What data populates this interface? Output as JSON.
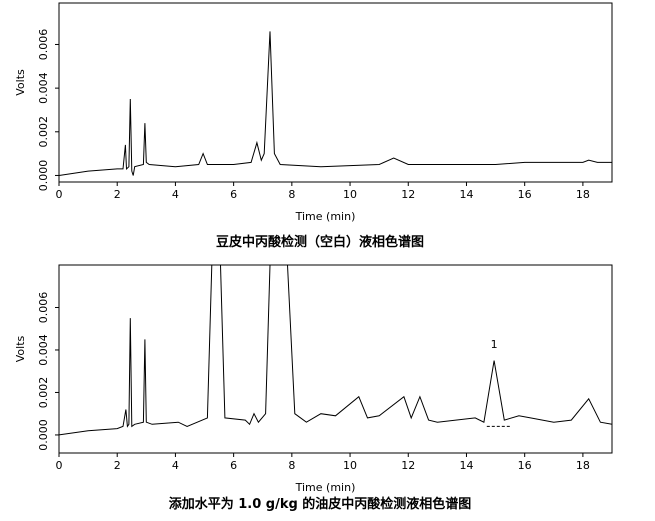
{
  "chart_data": [
    {
      "type": "line",
      "caption": "豆皮中丙酸检测（空白）液相色谱图",
      "x_label": "Time (min)",
      "y_label": "Volts",
      "xlim": [
        0,
        19
      ],
      "xticks": [
        0,
        2,
        4,
        6,
        8,
        10,
        12,
        14,
        16,
        18
      ],
      "ylim": [
        -0.0003,
        0.0079
      ],
      "yticks": [
        {
          "value": 0,
          "label": "0.000"
        },
        {
          "value": 0.002,
          "label": "0.002"
        },
        {
          "value": 0.004,
          "label": "0.004"
        },
        {
          "value": 0.006,
          "label": "0.006"
        }
      ],
      "series": [
        {
          "color": "#000000",
          "x": [
            0,
            1,
            2,
            2.2,
            2.28,
            2.32,
            2.4,
            2.45,
            2.5,
            2.55,
            2.6,
            2.9,
            2.95,
            3.0,
            3.1,
            4,
            4.8,
            4.95,
            5.1,
            6,
            6.6,
            6.8,
            6.95,
            7.05,
            7.25,
            7.4,
            7.6,
            9,
            11,
            11.5,
            12,
            15,
            16,
            18,
            18.2,
            18.5,
            19
          ],
          "values": [
            0,
            0.0002,
            0.0003,
            0.0003,
            0.0014,
            0.0003,
            0.0004,
            0.0035,
            0.0002,
            0,
            0.0004,
            0.0005,
            0.0024,
            0.0006,
            0.0005,
            0.0004,
            0.0005,
            0.001,
            0.0005,
            0.0005,
            0.0006,
            0.0015,
            0.0007,
            0.001,
            0.0066,
            0.001,
            0.0005,
            0.0004,
            0.0005,
            0.0008,
            0.0005,
            0.0005,
            0.0006,
            0.0006,
            0.0007,
            0.0006,
            0.0006
          ]
        }
      ]
    },
    {
      "type": "line",
      "caption": "添加水平为 1.0 g/kg 的油皮中丙酸检测液相色谱图",
      "x_label": "Time (min)",
      "y_label": "Volts",
      "xlim": [
        0,
        19
      ],
      "xticks": [
        0,
        2,
        4,
        6,
        8,
        10,
        12,
        14,
        16,
        18
      ],
      "ylim": [
        -0.00085,
        0.008
      ],
      "yticks": [
        {
          "value": 0,
          "label": "0.000"
        },
        {
          "value": 0.002,
          "label": "0.002"
        },
        {
          "value": 0.004,
          "label": "0.004"
        },
        {
          "value": 0.006,
          "label": "0.006"
        }
      ],
      "series": [
        {
          "color": "#000000",
          "x": [
            0,
            1,
            2,
            2.2,
            2.3,
            2.35,
            2.4,
            2.45,
            2.5,
            2.6,
            2.9,
            2.95,
            3.0,
            3.2,
            4.1,
            4.4,
            5.1,
            5.25,
            5.55,
            5.7,
            6.4,
            6.55,
            6.7,
            6.85,
            7.1,
            7.25,
            7.85,
            8.1,
            8.5,
            9,
            9.5,
            10.3,
            10.6,
            11,
            11.85,
            12.1,
            12.4,
            12.7,
            13,
            14.3,
            14.6,
            14.95,
            15.3,
            15.8,
            16.2,
            17,
            17.6,
            18.2,
            18.6,
            19
          ],
          "values": [
            0,
            0.0002,
            0.0003,
            0.0004,
            0.0012,
            0.0004,
            0.0005,
            0.0055,
            0.0004,
            0.0005,
            0.0006,
            0.0045,
            0.0006,
            0.0005,
            0.0006,
            0.0004,
            0.0008,
            0.008,
            0.008,
            0.0008,
            0.0007,
            0.0005,
            0.001,
            0.0006,
            0.001,
            0.008,
            0.008,
            0.001,
            0.0006,
            0.001,
            0.0009,
            0.0018,
            0.0008,
            0.0009,
            0.0018,
            0.0008,
            0.0018,
            0.0007,
            0.0006,
            0.0008,
            0.0006,
            0.0035,
            0.0007,
            0.0009,
            0.0008,
            0.0006,
            0.0007,
            0.0017,
            0.0006,
            0.0005
          ]
        }
      ],
      "baseline": {
        "x": [
          14.7,
          15.5
        ],
        "values": [
          0.0004,
          0.0004
        ]
      },
      "annotations": [
        {
          "text": "1",
          "x": 14.95,
          "y": 0.0041
        }
      ]
    }
  ]
}
